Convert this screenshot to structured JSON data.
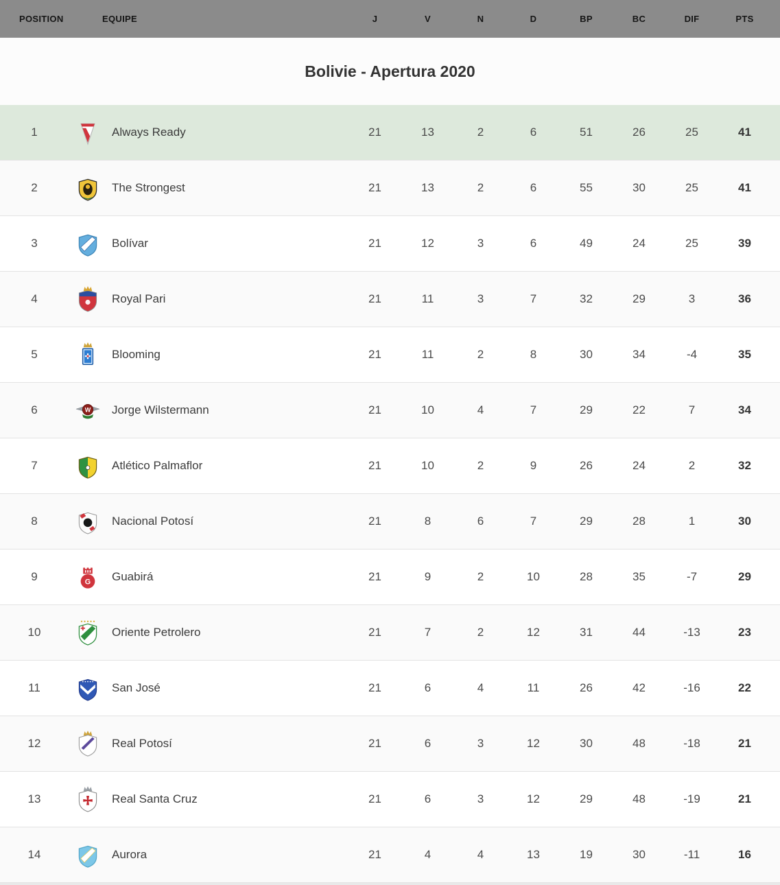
{
  "title": "Bolivie - Apertura 2020",
  "columns": [
    {
      "key": "position",
      "label": "POSITION"
    },
    {
      "key": "team",
      "label": "EQUIPE"
    },
    {
      "key": "j",
      "label": "J"
    },
    {
      "key": "v",
      "label": "V"
    },
    {
      "key": "n",
      "label": "N"
    },
    {
      "key": "d",
      "label": "D"
    },
    {
      "key": "bp",
      "label": "BP"
    },
    {
      "key": "bc",
      "label": "BC"
    },
    {
      "key": "dif",
      "label": "DIF"
    },
    {
      "key": "pts",
      "label": "PTS"
    }
  ],
  "rows": [
    {
      "position": "1",
      "team": "Always Ready",
      "j": "21",
      "v": "13",
      "n": "2",
      "d": "6",
      "bp": "51",
      "bc": "26",
      "dif": "25",
      "pts": "41",
      "highlight": true,
      "logo": {
        "name": "always-ready-logo",
        "type": "pennant",
        "colors": [
          "#d0353d",
          "#ffffff",
          "#b5b5b5"
        ]
      }
    },
    {
      "position": "2",
      "team": "The Strongest",
      "j": "21",
      "v": "13",
      "n": "2",
      "d": "6",
      "bp": "55",
      "bc": "30",
      "dif": "25",
      "pts": "41",
      "highlight": false,
      "logo": {
        "name": "the-strongest-logo",
        "type": "tiger",
        "colors": [
          "#f0c53a",
          "#26200e",
          "#3a7d44"
        ]
      }
    },
    {
      "position": "3",
      "team": "Bolívar",
      "j": "21",
      "v": "12",
      "n": "3",
      "d": "6",
      "bp": "49",
      "bc": "24",
      "dif": "25",
      "pts": "39",
      "highlight": false,
      "logo": {
        "name": "bolivar-logo",
        "type": "band",
        "colors": [
          "#64aede",
          "#3f87b8",
          "#ffffff",
          "#2a5f9e"
        ]
      }
    },
    {
      "position": "4",
      "team": "Royal Pari",
      "j": "21",
      "v": "11",
      "n": "3",
      "d": "7",
      "bp": "32",
      "bc": "29",
      "dif": "3",
      "pts": "36",
      "highlight": false,
      "logo": {
        "name": "royal-pari-logo",
        "type": "royalpari",
        "colors": [
          "#2b4ea0",
          "#d0353d",
          "#d8a531"
        ]
      }
    },
    {
      "position": "5",
      "team": "Blooming",
      "j": "21",
      "v": "11",
      "n": "2",
      "d": "8",
      "bp": "30",
      "bc": "34",
      "dif": "-4",
      "pts": "35",
      "highlight": false,
      "logo": {
        "name": "blooming-logo",
        "type": "blooming",
        "colors": [
          "#2d7dd2",
          "#cfa43a",
          "#d0353d"
        ]
      }
    },
    {
      "position": "6",
      "team": "Jorge Wilstermann",
      "j": "21",
      "v": "10",
      "n": "4",
      "d": "7",
      "bp": "29",
      "bc": "22",
      "dif": "7",
      "pts": "34",
      "highlight": false,
      "logo": {
        "name": "jorge-wilstermann-logo",
        "type": "wings",
        "colors": [
          "#8c1f1a",
          "#9aa0a6",
          "#2e7d32"
        ]
      }
    },
    {
      "position": "7",
      "team": "Atlético Palmaflor",
      "j": "21",
      "v": "10",
      "n": "2",
      "d": "9",
      "bp": "26",
      "bc": "24",
      "dif": "2",
      "pts": "32",
      "highlight": false,
      "logo": {
        "name": "atletico-palmaflor-logo",
        "type": "halves",
        "colors": [
          "#2f9242",
          "#f2d22e",
          "#6b5d12"
        ]
      }
    },
    {
      "position": "8",
      "team": "Nacional Potosí",
      "j": "21",
      "v": "8",
      "n": "6",
      "d": "7",
      "bp": "29",
      "bc": "28",
      "dif": "1",
      "pts": "30",
      "highlight": false,
      "logo": {
        "name": "nacional-potosi-logo",
        "type": "sash",
        "colors": [
          "#fdfdfd",
          "#191919",
          "#d0353d"
        ]
      }
    },
    {
      "position": "9",
      "team": "Guabirá",
      "j": "21",
      "v": "9",
      "n": "2",
      "d": "10",
      "bp": "28",
      "bc": "35",
      "dif": "-7",
      "pts": "29",
      "highlight": false,
      "logo": {
        "name": "guabira-logo",
        "type": "guabira",
        "colors": [
          "#d0353d",
          "#ffffff"
        ]
      }
    },
    {
      "position": "10",
      "team": "Oriente Petrolero",
      "j": "21",
      "v": "7",
      "n": "2",
      "d": "12",
      "bp": "31",
      "bc": "44",
      "dif": "-13",
      "pts": "23",
      "highlight": false,
      "logo": {
        "name": "oriente-petrolero-logo",
        "type": "oriente",
        "colors": [
          "#ffffff",
          "#2f8f3f",
          "#d0353d",
          "#d8b23a"
        ]
      }
    },
    {
      "position": "11",
      "team": "San José",
      "j": "21",
      "v": "6",
      "n": "4",
      "d": "11",
      "bp": "26",
      "bc": "42",
      "dif": "-16",
      "pts": "22",
      "highlight": false,
      "logo": {
        "name": "san-jose-logo",
        "type": "chevron",
        "colors": [
          "#2f58b5",
          "#ffffff"
        ]
      }
    },
    {
      "position": "12",
      "team": "Real Potosí",
      "j": "21",
      "v": "6",
      "n": "3",
      "d": "12",
      "bp": "30",
      "bc": "48",
      "dif": "-18",
      "pts": "21",
      "highlight": false,
      "logo": {
        "name": "real-potosi-logo",
        "type": "realpotosi",
        "colors": [
          "#ffffff",
          "#5d4a9c",
          "#cfa43a"
        ]
      }
    },
    {
      "position": "13",
      "team": "Real Santa Cruz",
      "j": "21",
      "v": "6",
      "n": "3",
      "d": "12",
      "bp": "29",
      "bc": "48",
      "dif": "-19",
      "pts": "21",
      "highlight": false,
      "logo": {
        "name": "real-santa-cruz-logo",
        "type": "cross",
        "colors": [
          "#ffffff",
          "#c3272e",
          "#9aa0a6"
        ]
      }
    },
    {
      "position": "14",
      "team": "Aurora",
      "j": "21",
      "v": "4",
      "n": "4",
      "d": "13",
      "bp": "19",
      "bc": "30",
      "dif": "-11",
      "pts": "16",
      "highlight": false,
      "logo": {
        "name": "aurora-logo",
        "type": "band",
        "colors": [
          "#7cc7e8",
          "#55a7c9",
          "#ffffff",
          "#e8c84a"
        ]
      }
    }
  ],
  "colors": {
    "header_bg": "#8b8b8b",
    "header_text": "#161616",
    "highlight_row_bg": "#dde9dc",
    "row_bg": "#ffffff",
    "row_alt_bg": "#fafafa",
    "separator": "#e3e3e3",
    "title_text": "#333333",
    "cell_text": "#4a4a4a"
  }
}
